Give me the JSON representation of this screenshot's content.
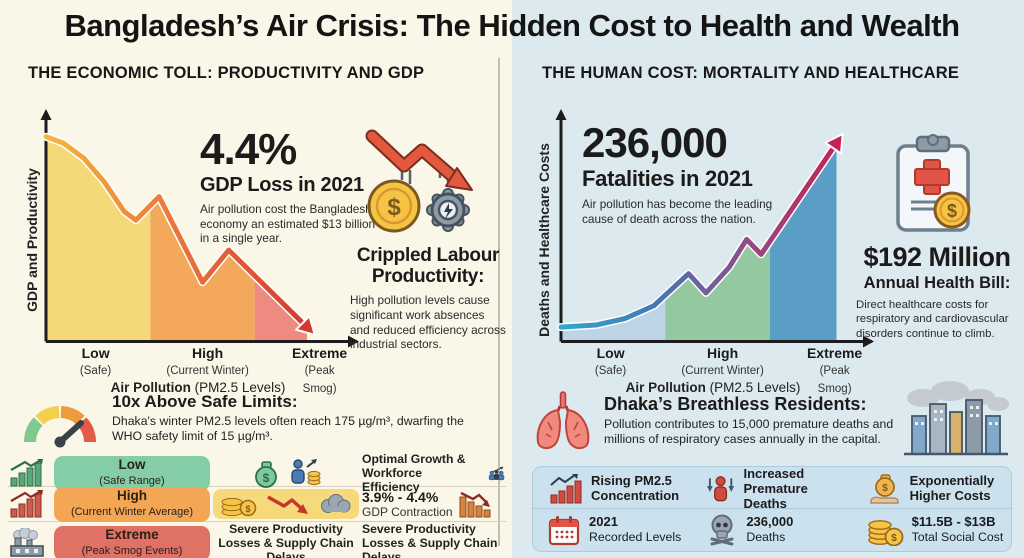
{
  "title": "Bangladesh’s Air Crisis: The Hidden Cost to Health and Wealth",
  "economic": {
    "header": "THE ECONOMIC TOLL: PRODUCTIVITY AND GDP",
    "stat": {
      "value": "4.4%",
      "label": "GDP Loss in 2021",
      "desc": "Air pollution cost the Bangladesh economy an estimated $13 billion in a single year."
    },
    "crippled": {
      "title": "Crippled Labour Productivity:",
      "desc": "High pollution levels cause significant work absences and reduced efficiency across industrial sectors."
    },
    "safe_limits": {
      "title": "10x Above Safe Limits:",
      "desc": "Dhaka's winter PM2.5 levels often reach 175 µg/m³, dwarfing the WHO safety limit of 15 µg/m³."
    },
    "table": {
      "rows": [
        {
          "level": "Low",
          "level_sub": "(Safe Range)",
          "pill_color": "#85CDA6",
          "outcome": "Optimal Growth & Workforce Efficiency"
        },
        {
          "level": "High",
          "level_sub": "(Current Winter Average)",
          "pill_color": "#F3A654",
          "outcome_bold": "3.9% - 4.4%",
          "outcome": "GDP Contraction"
        },
        {
          "level": "Extreme",
          "level_sub": "(Peak Smog Events)",
          "pill_color": "#DF7165",
          "mid_text": "Severe Productivity Losses & Supply Chain Delays",
          "outcome": "Severe Productivity Losses & Supply Chain Delays"
        }
      ]
    }
  },
  "human": {
    "header": "THE HUMAN COST: MORTALITY AND HEALTHCARE",
    "stat": {
      "value": "236,000",
      "label": "Fatalities in 2021",
      "desc": "Air pollution has become the leading cause of death across the nation."
    },
    "health_bill": {
      "value": "$192 Million",
      "label": "Annual Health Bill:",
      "desc": "Direct healthcare costs for respiratory and cardiovascular disorders continue to climb."
    },
    "breathless": {
      "title": "Dhaka’s Breathless Residents:",
      "desc": "Pollution contributes to 15,000 premature deaths and millions of respiratory cases annually in the capital."
    },
    "summary": {
      "rows": [
        [
          {
            "icon": "rising-chart-icon",
            "line1": "Rising PM2.5",
            "line2": "Concentration"
          },
          {
            "icon": "person-arrows-icon",
            "line1": "Increased",
            "line2": "Premature Deaths"
          },
          {
            "icon": "money-hand-icon",
            "line1": "Exponentially",
            "line2": "Higher Costs"
          }
        ],
        [
          {
            "icon": "calendar-icon",
            "line1": "2021",
            "line2": "Recorded Levels"
          },
          {
            "icon": "skull-icon",
            "line1": "236,000",
            "line2": "Deaths"
          },
          {
            "icon": "coins-icon",
            "line1": "$11.5B - $13B",
            "line2": "Total Social Cost"
          }
        ]
      ]
    }
  },
  "icons": [
    "crash-money-gear-icon",
    "gauge-icon",
    "bars-up-green-icon",
    "bars-up-red-icon",
    "factory-icon",
    "money-bag-icon",
    "person-coins-icon",
    "coins-decline-smog-icon",
    "people-growth-icon",
    "bars-down-icon",
    "clipboard-medical-coin-icon",
    "lungs-icon",
    "city-smog-icon",
    "rising-chart-icon",
    "person-arrows-icon",
    "money-hand-icon",
    "calendar-icon",
    "skull-icon",
    "coins-icon"
  ],
  "colors": {
    "bg_left": "#FAF6E8",
    "bg_right": "#DCE9EE",
    "pill_low": "#85CDA6",
    "pill_high": "#F3A654",
    "pill_extreme": "#DF7165",
    "pill_mid_yellow": "#F6D97B",
    "panel_bg": "#CBE2EE"
  },
  "chart_data": [
    {
      "type": "area",
      "ylabel": "GDP and Productivity",
      "xlabel_bold": "Air Pollution",
      "xlabel_rest": "(PM2.5 Levels)",
      "categories": [
        {
          "label": "Low",
          "sub": "(Safe)"
        },
        {
          "label": "High",
          "sub": "(Current Winter)"
        },
        {
          "label": "Extreme",
          "sub": "(Peak Smog)"
        }
      ],
      "trend": "declining",
      "x": [
        0,
        6,
        13,
        20,
        27,
        31,
        39,
        54,
        63,
        90
      ],
      "y": [
        95,
        92,
        85,
        74,
        60,
        56,
        67,
        27,
        42,
        6
      ],
      "bands": [
        {
          "from": 0,
          "to": 36,
          "color": "#F5D878"
        },
        {
          "from": 36,
          "to": 72,
          "color": "#F4A85C"
        },
        {
          "from": 72,
          "to": 100,
          "color": "#EE8B80"
        }
      ],
      "arrow_colors": [
        "#F5B63E",
        "#E9763C",
        "#D53A2F"
      ]
    },
    {
      "type": "area",
      "ylabel": "Deaths and Healthcare Costs",
      "xlabel_bold": "Air Pollution",
      "xlabel_rest": "(PM2.5 Levels)",
      "categories": [
        {
          "label": "Low",
          "sub": "(Safe)"
        },
        {
          "label": "High",
          "sub": "(Current Winter)"
        },
        {
          "label": "Extreme",
          "sub": "(Peak Smog)"
        }
      ],
      "trend": "rising",
      "x": [
        0,
        12,
        22,
        32,
        44,
        50,
        58,
        64,
        69,
        95
      ],
      "y": [
        6,
        7,
        10,
        16,
        31,
        22,
        34,
        47,
        40,
        92
      ],
      "bands": [
        {
          "from": 0,
          "to": 36,
          "color": "#BDD4E7"
        },
        {
          "from": 36,
          "to": 72,
          "color": "#93C8A0"
        },
        {
          "from": 72,
          "to": 100,
          "color": "#5B9EC5"
        }
      ],
      "arrow_colors": [
        "#2FA8CC",
        "#4679B5",
        "#8E4E86",
        "#C42357"
      ]
    }
  ]
}
